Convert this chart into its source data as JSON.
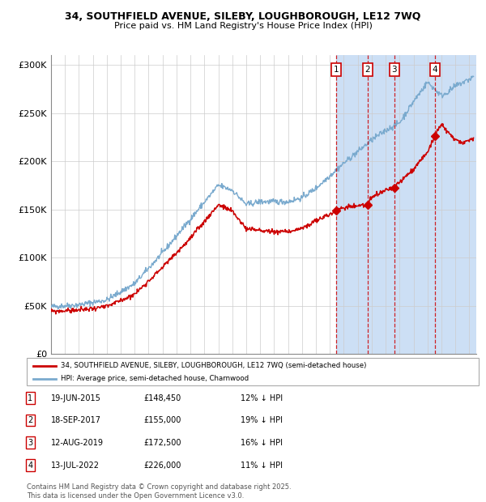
{
  "title_line1": "34, SOUTHFIELD AVENUE, SILEBY, LOUGHBOROUGH, LE12 7WQ",
  "title_line2": "Price paid vs. HM Land Registry's House Price Index (HPI)",
  "xlim_start": 1995.0,
  "xlim_end": 2025.5,
  "ylim_min": 0,
  "ylim_max": 310000,
  "yticks": [
    0,
    50000,
    100000,
    150000,
    200000,
    250000,
    300000
  ],
  "ytick_labels": [
    "£0",
    "£50K",
    "£100K",
    "£150K",
    "£200K",
    "£250K",
    "£300K"
  ],
  "xticks": [
    1995,
    1996,
    1997,
    1998,
    1999,
    2000,
    2001,
    2002,
    2003,
    2004,
    2005,
    2006,
    2007,
    2008,
    2009,
    2010,
    2011,
    2012,
    2013,
    2014,
    2015,
    2016,
    2017,
    2018,
    2019,
    2020,
    2021,
    2022,
    2023,
    2024,
    2025
  ],
  "sale_dates": [
    2015.463,
    2017.714,
    2019.618,
    2022.534
  ],
  "sale_prices": [
    148450,
    155000,
    172500,
    226000
  ],
  "sale_labels": [
    "1",
    "2",
    "3",
    "4"
  ],
  "sale_info": [
    {
      "num": "1",
      "date": "19-JUN-2015",
      "price": "£148,450",
      "pct": "12% ↓ HPI"
    },
    {
      "num": "2",
      "date": "18-SEP-2017",
      "price": "£155,000",
      "pct": "19% ↓ HPI"
    },
    {
      "num": "3",
      "date": "12-AUG-2019",
      "price": "£172,500",
      "pct": "16% ↓ HPI"
    },
    {
      "num": "4",
      "date": "13-JUL-2022",
      "price": "£226,000",
      "pct": "11% ↓ HPI"
    }
  ],
  "red_line_color": "#cc0000",
  "blue_line_color": "#7aaace",
  "shade_color": "#ccdff5",
  "dashed_color": "#cc0000",
  "legend_red_label": "34, SOUTHFIELD AVENUE, SILEBY, LOUGHBOROUGH, LE12 7WQ (semi-detached house)",
  "legend_blue_label": "HPI: Average price, semi-detached house, Charnwood",
  "footer_text": "Contains HM Land Registry data © Crown copyright and database right 2025.\nThis data is licensed under the Open Government Licence v3.0."
}
